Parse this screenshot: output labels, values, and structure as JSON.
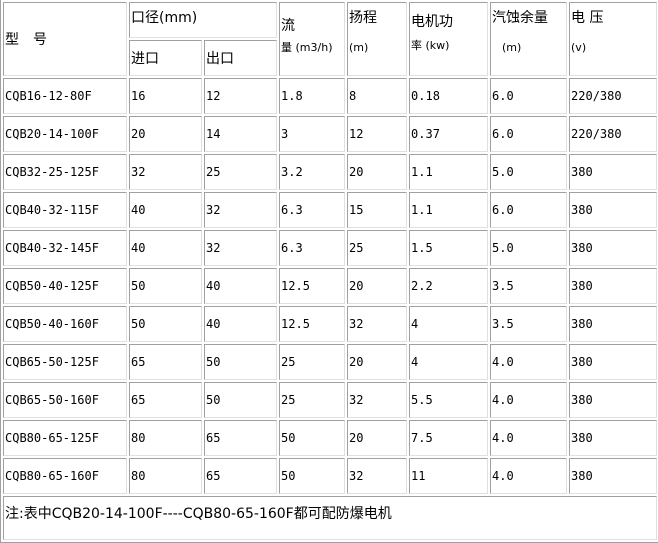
{
  "header": {
    "model": "型　号",
    "caliber": "口径(mm)",
    "inlet": "进口",
    "outlet": "出口",
    "flow": "流",
    "flow_unit": "量 (m3/h)",
    "head": "扬程",
    "head_unit": "(m)",
    "power": "电机功",
    "power_unit": "率 (kw)",
    "npsh": "汽蚀余量",
    "npsh_unit": "(m)",
    "voltage": "电 压",
    "voltage_unit": "(v)"
  },
  "rows": [
    [
      "CQB16-12-80F",
      "16",
      "12",
      "1.8",
      "8",
      "0.18",
      "6.0",
      "220/380"
    ],
    [
      "CQB20-14-100F",
      "20",
      "14",
      "3",
      "12",
      "0.37",
      "6.0",
      "220/380"
    ],
    [
      "CQB32-25-125F",
      "32",
      "25",
      "3.2",
      "20",
      "1.1",
      "5.0",
      "380"
    ],
    [
      "CQB40-32-115F",
      "40",
      "32",
      "6.3",
      "15",
      "1.1",
      "6.0",
      "380"
    ],
    [
      "CQB40-32-145F",
      "40",
      "32",
      "6.3",
      "25",
      "1.5",
      "5.0",
      "380"
    ],
    [
      "CQB50-40-125F",
      "50",
      "40",
      "12.5",
      "20",
      "2.2",
      "3.5",
      "380"
    ],
    [
      "CQB50-40-160F",
      "50",
      "40",
      "12.5",
      "32",
      "4",
      "3.5",
      "380"
    ],
    [
      "CQB65-50-125F",
      "65",
      "50",
      "25",
      "20",
      "4",
      "4.0",
      "380"
    ],
    [
      "CQB65-50-160F",
      "65",
      "50",
      "25",
      "32",
      "5.5",
      "4.0",
      "380"
    ],
    [
      "CQB80-65-125F",
      "80",
      "65",
      "50",
      "20",
      "7.5",
      "4.0",
      "380"
    ],
    [
      "CQB80-65-160F",
      "80",
      "65",
      "50",
      "32",
      "11",
      "4.0",
      "380"
    ]
  ],
  "note": "注:表中CQB20-14-100F----CQB80-65-160F都可配防爆电机"
}
